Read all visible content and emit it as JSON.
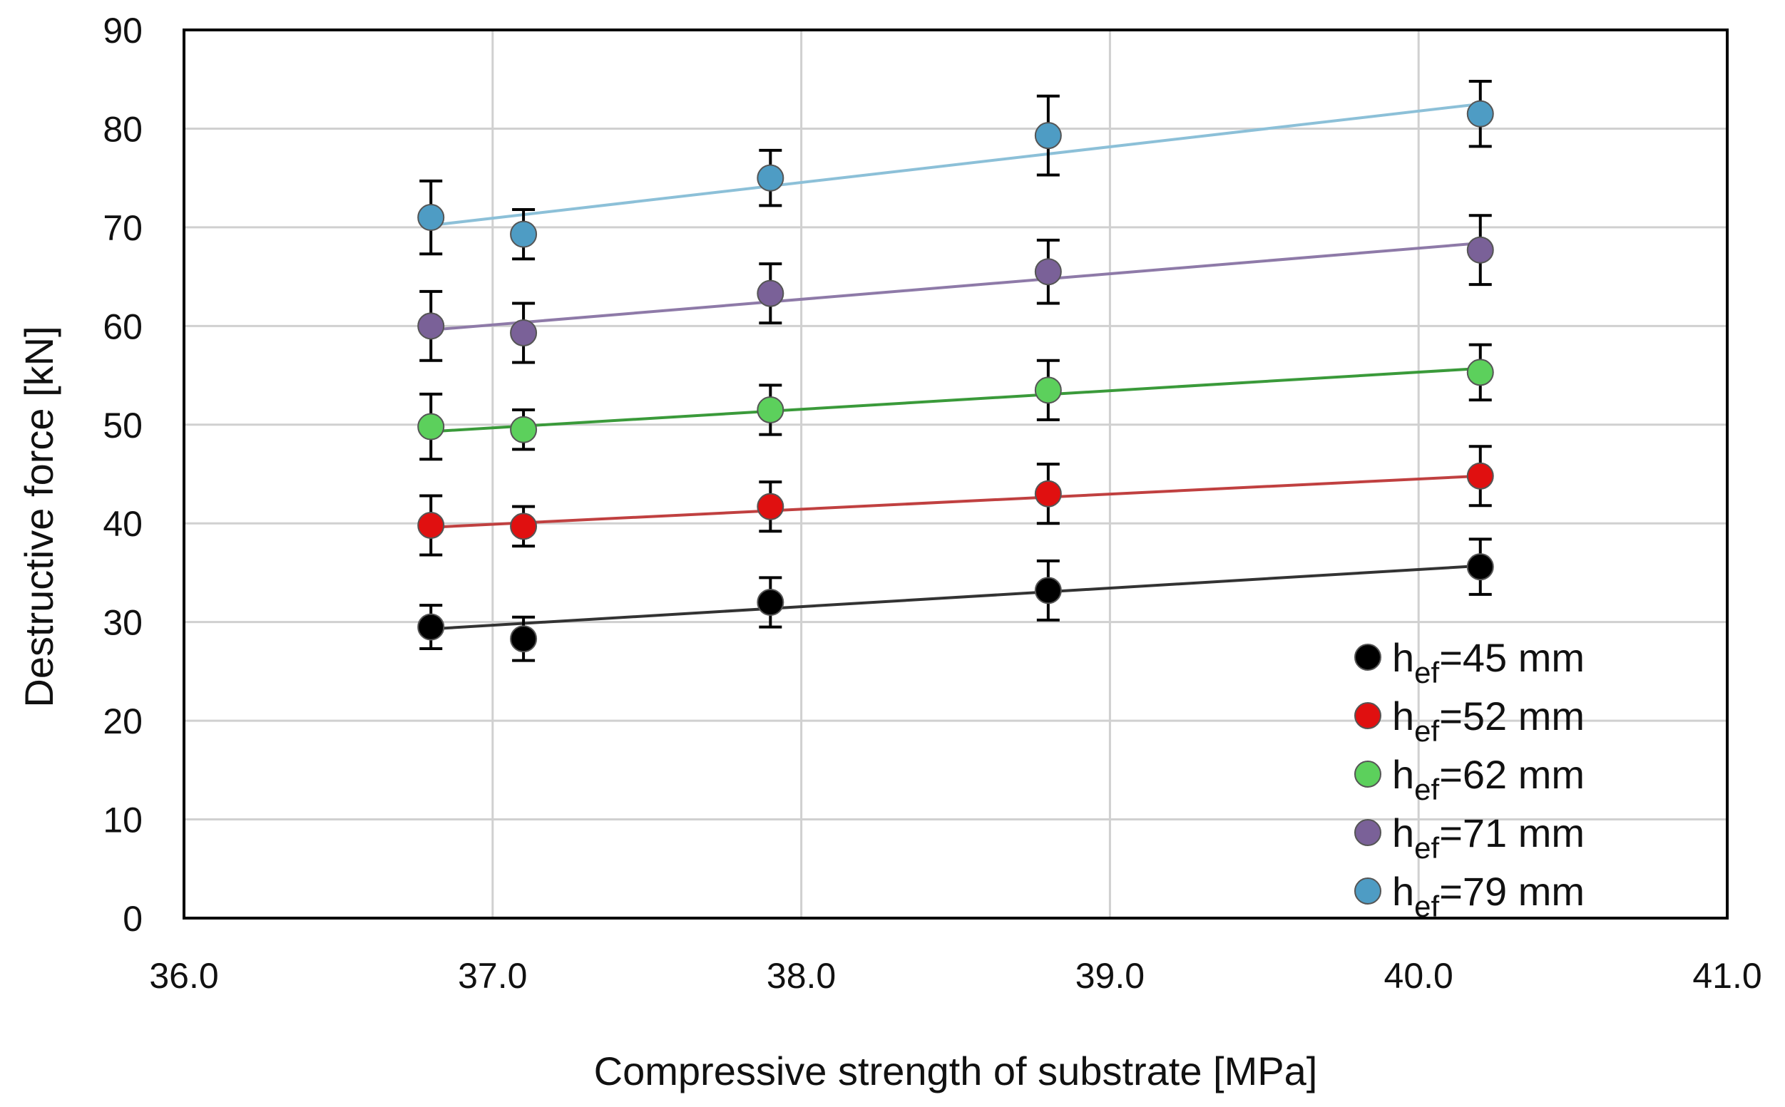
{
  "chart_data": {
    "type": "scatter",
    "title": "",
    "xlabel": "Compressive strength  of substrate [MPa]",
    "ylabel": "Destructive force [kN]",
    "xlim": [
      36.0,
      41.0
    ],
    "ylim": [
      0,
      90
    ],
    "x_ticks": [
      "36.0",
      "37.0",
      "38.0",
      "39.0",
      "40.0",
      "41.0"
    ],
    "y_ticks": [
      "0",
      "10",
      "20",
      "30",
      "40",
      "50",
      "60",
      "70",
      "80",
      "90"
    ],
    "grid": true,
    "legend_position": "bottom-right",
    "x": [
      36.8,
      37.1,
      37.9,
      38.8,
      40.2
    ],
    "series": [
      {
        "name": "h_ef=45 mm",
        "legend_main": "h",
        "legend_sub": "ef",
        "legend_rest": "=45 mm",
        "color": "#000000",
        "line_color": "#333333",
        "values": [
          29.5,
          28.3,
          32.0,
          33.2,
          35.6
        ],
        "errors": [
          2.2,
          2.2,
          2.5,
          3.0,
          2.8
        ],
        "fit": [
          29.3,
          35.7
        ]
      },
      {
        "name": "h_ef=52 mm",
        "legend_main": "h",
        "legend_sub": "ef",
        "legend_rest": "=52 mm",
        "color": "#e01010",
        "line_color": "#c04040",
        "values": [
          39.8,
          39.7,
          41.7,
          43.0,
          44.8
        ],
        "errors": [
          3.0,
          2.0,
          2.5,
          3.0,
          3.0
        ],
        "fit": [
          39.6,
          44.8
        ]
      },
      {
        "name": "h_ef=62 mm",
        "legend_main": "h",
        "legend_sub": "ef",
        "legend_rest": "=62 mm",
        "color": "#5cd05c",
        "line_color": "#3a9a3a",
        "values": [
          49.8,
          49.5,
          51.5,
          53.5,
          55.3
        ],
        "errors": [
          3.3,
          2.0,
          2.5,
          3.0,
          2.8
        ],
        "fit": [
          49.3,
          55.7
        ]
      },
      {
        "name": "h_ef=71 mm",
        "legend_main": "h",
        "legend_sub": "ef",
        "legend_rest": "=71 mm",
        "color": "#7a6198",
        "line_color": "#8e7aa8",
        "values": [
          60.0,
          59.3,
          63.3,
          65.5,
          67.7
        ],
        "errors": [
          3.5,
          3.0,
          3.0,
          3.2,
          3.5
        ],
        "fit": [
          59.6,
          68.4
        ]
      },
      {
        "name": "h_ef=79 mm",
        "legend_main": "h",
        "legend_sub": "ef",
        "legend_rest": "=79 mm",
        "color": "#4e9cc4",
        "line_color": "#8cc0d8",
        "values": [
          71.0,
          69.3,
          75.0,
          79.3,
          81.5
        ],
        "errors": [
          3.7,
          2.5,
          2.8,
          4.0,
          3.3
        ],
        "fit": [
          70.2,
          82.5
        ]
      }
    ]
  }
}
